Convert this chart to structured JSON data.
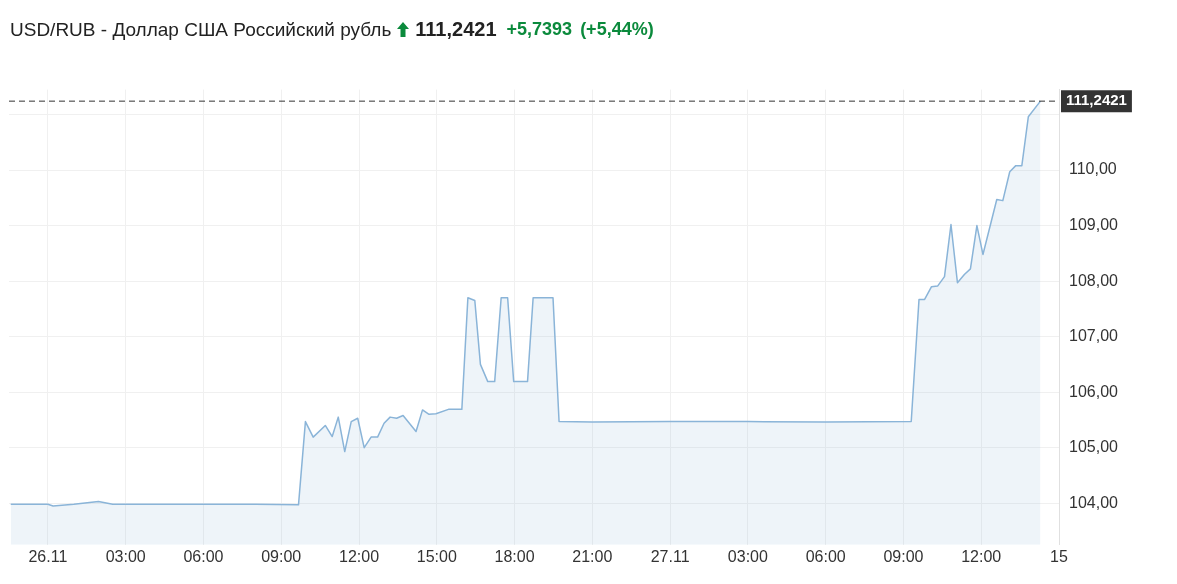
{
  "chart_data": {
    "type": "area",
    "title": "USD/RUB - Доллар США Российский рубль",
    "annotations": [
      "111,2421",
      "+5,7393",
      "(+5,44%)"
    ],
    "x": [
      "--11-25T22:34",
      "--11-26T00:00",
      "--11-26T00:12",
      "--11-26T01:00",
      "--11-26T01:57",
      "--11-26T02:30",
      "--11-26T04:00",
      "--11-26T06:00",
      "--11-26T08:00",
      "--11-26T09:40",
      "--11-26T09:56",
      "--11-26T10:14",
      "--11-26T10:42",
      "--11-26T10:58",
      "--11-26T11:12",
      "--11-26T11:27",
      "--11-26T11:42",
      "--11-26T11:57",
      "--11-26T12:12",
      "--11-26T12:28",
      "--11-26T12:43",
      "--11-26T12:58",
      "--11-26T13:12",
      "--11-26T13:27",
      "--11-26T13:42",
      "--11-26T14:12",
      "--11-26T14:27",
      "--11-26T14:42",
      "--11-26T14:58",
      "--11-26T15:27",
      "--11-26T15:58",
      "--11-26T16:12",
      "--11-26T16:28",
      "--11-26T16:41",
      "--11-26T16:58",
      "--11-26T17:14",
      "--11-26T17:29",
      "--11-26T17:44",
      "--11-26T17:58",
      "--11-26T18:30",
      "--11-26T18:43",
      "--11-26T19:29",
      "--11-26T19:43",
      "--11-26T21:00",
      "--11-27T00:00",
      "--11-27T03:00",
      "--11-27T06:00",
      "--11-27T09:18",
      "--11-27T09:36",
      "--11-27T09:49",
      "--11-27T10:05",
      "--11-27T10:19",
      "--11-27T10:35",
      "--11-27T10:50",
      "--11-27T11:05",
      "--11-27T11:21",
      "--11-27T11:35",
      "--11-27T11:50",
      "--11-27T12:04",
      "--11-27T12:36",
      "--11-27T12:50",
      "--11-27T13:06",
      "--11-27T13:20",
      "--11-27T13:34",
      "--11-27T13:49",
      "--11-27T14:17"
    ],
    "series": [
      {
        "color": "#8ab4d8",
        "values": [
          103.98,
          103.98,
          103.95,
          103.98,
          104.03,
          103.98,
          103.98,
          103.98,
          103.98,
          103.97,
          105.47,
          105.19,
          105.4,
          105.2,
          105.55,
          104.93,
          105.47,
          105.53,
          105.0,
          105.19,
          105.19,
          105.44,
          105.55,
          105.53,
          105.58,
          105.29,
          105.68,
          105.6,
          105.61,
          105.69,
          105.69,
          107.7,
          107.65,
          106.5,
          106.19,
          106.19,
          107.7,
          107.7,
          106.19,
          106.19,
          107.7,
          107.7,
          105.47,
          105.46,
          105.47,
          105.47,
          105.46,
          105.47,
          107.67,
          107.67,
          107.9,
          107.91,
          108.08,
          109.02,
          107.97,
          108.12,
          108.22,
          109.0,
          108.48,
          109.47,
          109.45,
          109.97,
          110.08,
          110.08,
          110.96,
          111.2421
        ]
      }
    ],
    "xlim": [
      "--11-25T22:30",
      "--11-27T15:00"
    ],
    "xticks": [
      {
        "value": "--11-26T00:00",
        "label": "26.11"
      },
      {
        "value": "--11-26T03:00",
        "label": "03:00"
      },
      {
        "value": "--11-26T06:00",
        "label": "06:00"
      },
      {
        "value": "--11-26T09:00",
        "label": "09:00"
      },
      {
        "value": "--11-26T12:00",
        "label": "12:00"
      },
      {
        "value": "--11-26T15:00",
        "label": "15:00"
      },
      {
        "value": "--11-26T18:00",
        "label": "18:00"
      },
      {
        "value": "--11-26T21:00",
        "label": "21:00"
      },
      {
        "value": "--11-27T00:00",
        "label": "27.11"
      },
      {
        "value": "--11-27T03:00",
        "label": "03:00"
      },
      {
        "value": "--11-27T06:00",
        "label": "06:00"
      },
      {
        "value": "--11-27T09:00",
        "label": "09:00"
      },
      {
        "value": "--11-27T12:00",
        "label": "12:00"
      },
      {
        "value": "--11-27T15:00",
        "label": "15"
      }
    ],
    "ylim": [
      103.25,
      111.45
    ],
    "yticks": [
      {
        "value": 104,
        "label": "104,00"
      },
      {
        "value": 105,
        "label": "105,00"
      },
      {
        "value": 106,
        "label": "106,00"
      },
      {
        "value": 107,
        "label": "107,00"
      },
      {
        "value": 108,
        "label": "108,00"
      },
      {
        "value": 109,
        "label": "109,00"
      },
      {
        "value": 110,
        "label": "110,00"
      },
      {
        "value": 111,
        "label": null
      }
    ],
    "ref_lines": [
      {
        "axis": "y",
        "value": 111.2421,
        "label": "111,2421",
        "color": "#333333",
        "line_style": "dashed"
      }
    ],
    "grid": true,
    "legend": false,
    "marker": "none",
    "line_style": "solid"
  }
}
